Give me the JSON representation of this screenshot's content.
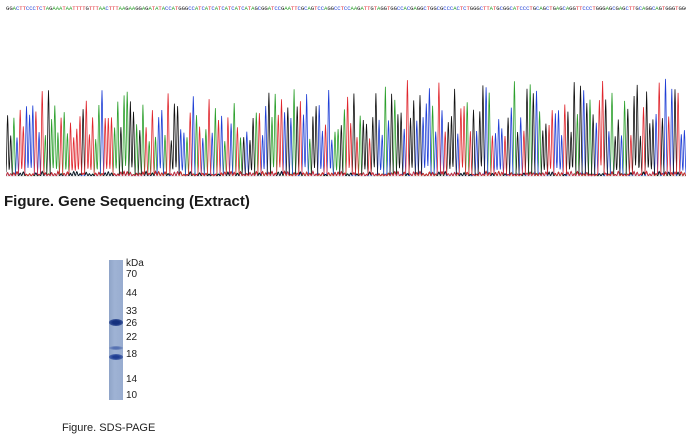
{
  "sequence": {
    "text": "GGACTTCCCTCTAGAAATAATTTTGTTTAACTTTAAGAAGGAGATATACCATGGGCCATCATCATCATCATCATAGCGGATCCGAATTCGCAGTCCAGGCCTCCAAGATTGTAGGTGGCCACGAGGCTGGCGCCCACTCTGGGCTTATGCGGCATCCCTGCAGCTGAGCAGGTTCCCTGGGAGCGAGCTTGCAGGCAGTGGGTGGGCTGCTCGTCC",
    "base_colors": {
      "A": "#2ca02c",
      "C": "#1f3fd6",
      "G": "#111111",
      "T": "#e0262d"
    }
  },
  "chromatogram": {
    "trace_colors": {
      "A": "#2ca02c",
      "C": "#1f3fd6",
      "G": "#111111",
      "T": "#e0262d"
    }
  },
  "captions": {
    "gene": "Figure. Gene Sequencing (Extract)",
    "sds": "Figure. SDS-PAGE"
  },
  "gel": {
    "unit": "kDa",
    "markers": [
      "70",
      "44",
      "33",
      "26",
      "22",
      "18",
      "14",
      "10"
    ],
    "lane_color": "#97abcf",
    "band_color": "#1d3d94"
  }
}
